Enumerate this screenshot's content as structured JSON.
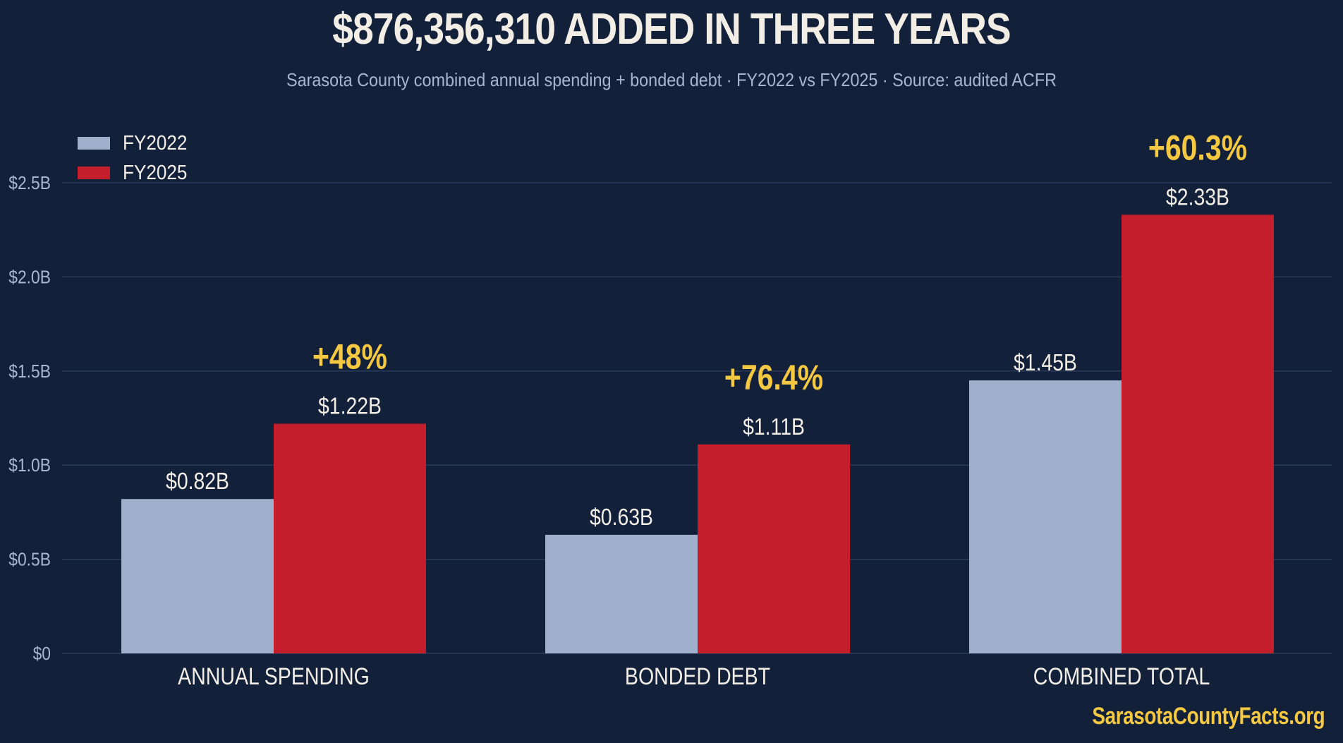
{
  "title": "$876,356,310 ADDED IN THREE YEARS",
  "subtitle": "Sarasota County combined annual spending + bonded debt · FY2022 vs FY2025 · Source: audited ACFR",
  "watermark": "SarasotaCountyFacts.org",
  "colors": {
    "background": "#13203a",
    "fy2022": "#9fb0cc",
    "fy2025": "#c41e2d",
    "highlight": "#f5c842",
    "text": "#f2eee6",
    "axis_text": "#a9b6cf",
    "grid": "#2a3a5a"
  },
  "chart_data": {
    "type": "bar",
    "title": "$876,356,310 ADDED IN THREE YEARS",
    "xlabel": "",
    "ylabel": "",
    "categories": [
      "ANNUAL SPENDING",
      "BONDED DEBT",
      "COMBINED TOTAL"
    ],
    "series": [
      {
        "name": "FY2022",
        "values": [
          0.82,
          0.63,
          1.45
        ],
        "labels": [
          "$0.82B",
          "$0.63B",
          "$1.45B"
        ]
      },
      {
        "name": "FY2025",
        "values": [
          1.22,
          1.11,
          2.33
        ],
        "labels": [
          "$1.22B",
          "$1.11B",
          "$2.33B"
        ]
      }
    ],
    "change_labels": [
      "+48%",
      "+76.4%",
      "+60.3%"
    ],
    "ylim": [
      0,
      2.5
    ],
    "yticks": [
      0,
      0.5,
      1.0,
      1.5,
      2.0,
      2.5
    ],
    "ytick_labels": [
      "$0",
      "$0.5B",
      "$1.0B",
      "$1.5B",
      "$2.0B",
      "$2.5B"
    ],
    "grid": true,
    "legend_position": "top-left"
  }
}
